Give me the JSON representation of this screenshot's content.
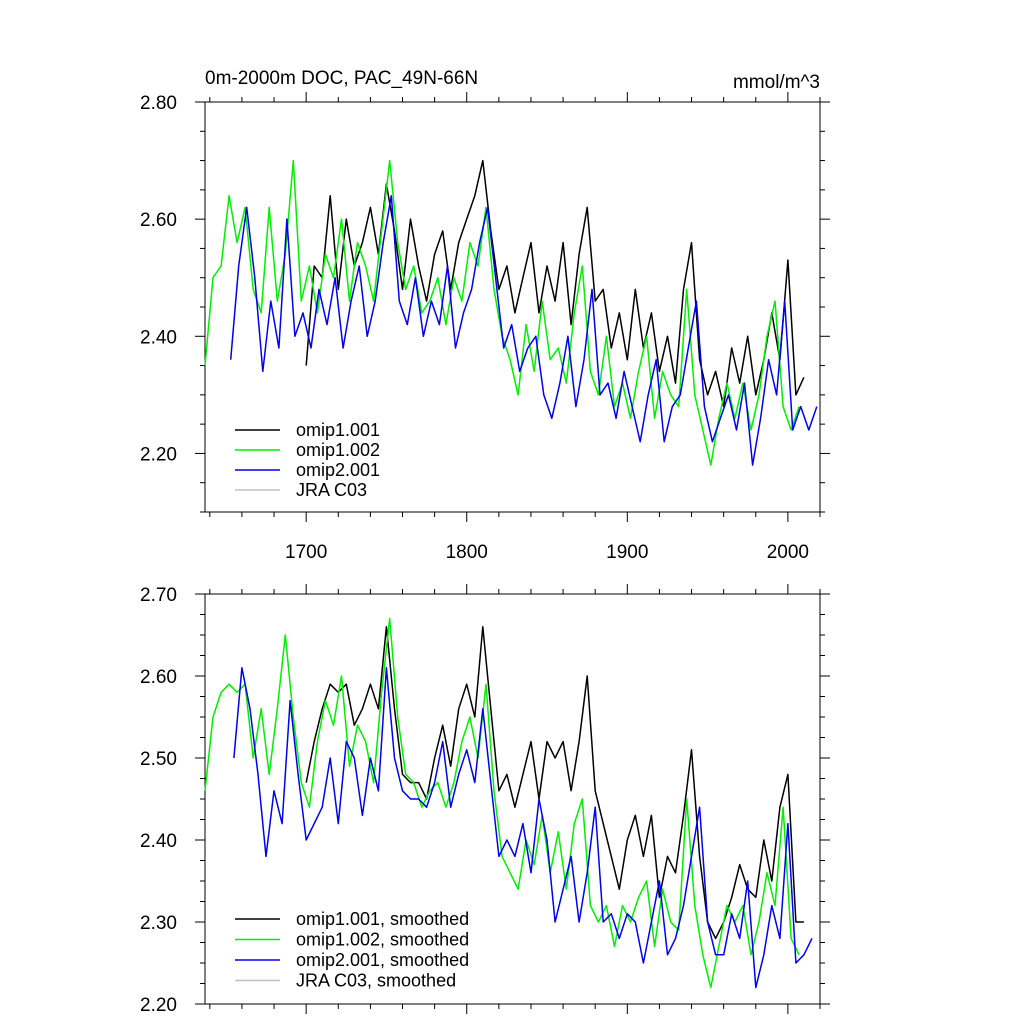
{
  "chart_data": [
    {
      "type": "line",
      "title": "0m-2000m DOC, PAC_49N-66N",
      "units": "mmol/m^3",
      "xlim": [
        1637,
        2020
      ],
      "ylim": [
        2.1,
        2.8
      ],
      "xticks": [
        1700,
        1800,
        1900,
        2000
      ],
      "xtick_labels": [
        "1700",
        "1800",
        "1900",
        "2000"
      ],
      "yticks": [
        2.2,
        2.4,
        2.6,
        2.8
      ],
      "ytick_labels": [
        "2.20",
        "2.40",
        "2.60",
        "2.80"
      ],
      "legend_position": "bottom-left",
      "legend": [
        "omip1.001",
        "omip1.002",
        "omip2.001",
        "JRA C03"
      ],
      "series": [
        {
          "name": "omip1.001",
          "color": "#000000",
          "x": [
            1700,
            1705,
            1710,
            1715,
            1720,
            1725,
            1730,
            1735,
            1740,
            1745,
            1750,
            1755,
            1760,
            1765,
            1770,
            1775,
            1780,
            1785,
            1790,
            1795,
            1800,
            1805,
            1810,
            1815,
            1820,
            1825,
            1830,
            1835,
            1840,
            1845,
            1850,
            1855,
            1860,
            1865,
            1870,
            1875,
            1880,
            1885,
            1890,
            1895,
            1900,
            1905,
            1910,
            1915,
            1920,
            1925,
            1930,
            1935,
            1940,
            1945,
            1950,
            1955,
            1960,
            1965,
            1970,
            1975,
            1980,
            1985,
            1990,
            1995,
            2000,
            2005,
            2010
          ],
          "y": [
            2.35,
            2.52,
            2.5,
            2.64,
            2.48,
            2.6,
            2.52,
            2.56,
            2.62,
            2.54,
            2.66,
            2.58,
            2.48,
            2.6,
            2.52,
            2.46,
            2.54,
            2.58,
            2.48,
            2.56,
            2.6,
            2.64,
            2.7,
            2.58,
            2.48,
            2.52,
            2.44,
            2.5,
            2.56,
            2.44,
            2.52,
            2.46,
            2.56,
            2.42,
            2.54,
            2.62,
            2.46,
            2.48,
            2.38,
            2.44,
            2.36,
            2.48,
            2.38,
            2.44,
            2.34,
            2.4,
            2.32,
            2.48,
            2.56,
            2.36,
            2.3,
            2.34,
            2.28,
            2.38,
            2.32,
            2.4,
            2.3,
            2.36,
            2.44,
            2.36,
            2.53,
            2.3,
            2.33
          ]
        },
        {
          "name": "omip1.002",
          "color": "#00ee00",
          "x": [
            1637,
            1642,
            1647,
            1652,
            1657,
            1662,
            1667,
            1672,
            1677,
            1682,
            1687,
            1692,
            1697,
            1702,
            1707,
            1712,
            1717,
            1722,
            1727,
            1732,
            1737,
            1742,
            1747,
            1752,
            1757,
            1762,
            1767,
            1772,
            1777,
            1782,
            1787,
            1792,
            1797,
            1802,
            1807,
            1812,
            1817,
            1822,
            1827,
            1832,
            1837,
            1842,
            1847,
            1852,
            1857,
            1862,
            1867,
            1872,
            1877,
            1882,
            1887,
            1892,
            1897,
            1902,
            1907,
            1912,
            1917,
            1922,
            1927,
            1932,
            1937,
            1942,
            1947,
            1952,
            1957,
            1962,
            1967,
            1972,
            1977,
            1982,
            1987,
            1992,
            1997,
            2002,
            2007
          ],
          "y": [
            2.35,
            2.5,
            2.52,
            2.64,
            2.56,
            2.62,
            2.48,
            2.44,
            2.62,
            2.46,
            2.54,
            2.7,
            2.46,
            2.52,
            2.44,
            2.54,
            2.5,
            2.6,
            2.46,
            2.56,
            2.52,
            2.46,
            2.58,
            2.7,
            2.56,
            2.48,
            2.52,
            2.44,
            2.46,
            2.5,
            2.42,
            2.5,
            2.46,
            2.56,
            2.52,
            2.62,
            2.48,
            2.4,
            2.36,
            2.3,
            2.42,
            2.34,
            2.46,
            2.36,
            2.38,
            2.32,
            2.44,
            2.52,
            2.34,
            2.3,
            2.4,
            2.28,
            2.32,
            2.26,
            2.34,
            2.4,
            2.26,
            2.34,
            2.3,
            2.28,
            2.48,
            2.3,
            2.24,
            2.18,
            2.26,
            2.32,
            2.26,
            2.32,
            2.24,
            2.3,
            2.4,
            2.46,
            2.28,
            2.24,
            2.28
          ]
        },
        {
          "name": "omip2.001",
          "color": "#0000ee",
          "x": [
            1653,
            1658,
            1663,
            1668,
            1673,
            1678,
            1683,
            1688,
            1693,
            1698,
            1703,
            1708,
            1713,
            1718,
            1723,
            1728,
            1733,
            1738,
            1743,
            1748,
            1753,
            1758,
            1763,
            1768,
            1773,
            1778,
            1783,
            1788,
            1793,
            1798,
            1803,
            1808,
            1813,
            1818,
            1823,
            1828,
            1833,
            1838,
            1843,
            1848,
            1853,
            1858,
            1863,
            1868,
            1873,
            1878,
            1883,
            1888,
            1893,
            1898,
            1903,
            1908,
            1913,
            1918,
            1923,
            1928,
            1933,
            1938,
            1943,
            1948,
            1953,
            1958,
            1963,
            1968,
            1973,
            1978,
            1983,
            1988,
            1993,
            1998,
            2003,
            2008,
            2013,
            2018
          ],
          "y": [
            2.36,
            2.52,
            2.62,
            2.5,
            2.34,
            2.46,
            2.38,
            2.6,
            2.4,
            2.44,
            2.38,
            2.48,
            2.42,
            2.5,
            2.38,
            2.46,
            2.52,
            2.4,
            2.46,
            2.56,
            2.64,
            2.46,
            2.42,
            2.5,
            2.4,
            2.46,
            2.42,
            2.52,
            2.38,
            2.44,
            2.48,
            2.56,
            2.62,
            2.5,
            2.38,
            2.42,
            2.34,
            2.38,
            2.4,
            2.3,
            2.26,
            2.32,
            2.4,
            2.28,
            2.36,
            2.48,
            2.3,
            2.32,
            2.26,
            2.34,
            2.28,
            2.22,
            2.3,
            2.36,
            2.22,
            2.28,
            2.3,
            2.38,
            2.46,
            2.28,
            2.22,
            2.26,
            2.3,
            2.24,
            2.32,
            2.18,
            2.26,
            2.36,
            2.3,
            2.46,
            2.24,
            2.28,
            2.24,
            2.28
          ]
        }
      ]
    },
    {
      "type": "line",
      "xlim": [
        1637,
        2020
      ],
      "ylim": [
        2.2,
        2.7
      ],
      "xticks": [
        1700,
        1800,
        1900,
        2000
      ],
      "yticks": [
        2.2,
        2.3,
        2.4,
        2.5,
        2.6,
        2.7
      ],
      "ytick_labels": [
        "2.20",
        "2.30",
        "2.40",
        "2.50",
        "2.60",
        "2.70"
      ],
      "legend_position": "bottom-left",
      "legend": [
        "omip1.001, smoothed",
        "omip1.002, smoothed",
        "omip2.001, smoothed",
        "JRA C03, smoothed"
      ],
      "series": [
        {
          "name": "omip1.001, smoothed",
          "color": "#000000",
          "x": [
            1700,
            1705,
            1710,
            1715,
            1720,
            1725,
            1730,
            1735,
            1740,
            1745,
            1750,
            1755,
            1760,
            1765,
            1770,
            1775,
            1780,
            1785,
            1790,
            1795,
            1800,
            1805,
            1810,
            1815,
            1820,
            1825,
            1830,
            1835,
            1840,
            1845,
            1850,
            1855,
            1860,
            1865,
            1870,
            1875,
            1880,
            1885,
            1890,
            1895,
            1900,
            1905,
            1910,
            1915,
            1920,
            1925,
            1930,
            1935,
            1940,
            1945,
            1950,
            1955,
            1960,
            1965,
            1970,
            1975,
            1980,
            1985,
            1990,
            1995,
            2000,
            2005,
            2010
          ],
          "y": [
            2.47,
            2.52,
            2.56,
            2.59,
            2.58,
            2.59,
            2.54,
            2.56,
            2.59,
            2.56,
            2.66,
            2.56,
            2.48,
            2.47,
            2.47,
            2.45,
            2.5,
            2.54,
            2.49,
            2.56,
            2.59,
            2.55,
            2.66,
            2.56,
            2.46,
            2.48,
            2.44,
            2.48,
            2.52,
            2.45,
            2.52,
            2.5,
            2.52,
            2.46,
            2.52,
            2.6,
            2.46,
            2.42,
            2.38,
            2.34,
            2.4,
            2.43,
            2.38,
            2.43,
            2.33,
            2.38,
            2.36,
            2.43,
            2.51,
            2.38,
            2.3,
            2.28,
            2.3,
            2.33,
            2.37,
            2.34,
            2.33,
            2.4,
            2.35,
            2.44,
            2.48,
            2.3,
            2.3
          ]
        },
        {
          "name": "omip1.002, smoothed",
          "color": "#00ee00",
          "x": [
            1637,
            1642,
            1647,
            1652,
            1657,
            1662,
            1667,
            1672,
            1677,
            1682,
            1687,
            1692,
            1697,
            1702,
            1707,
            1712,
            1717,
            1722,
            1727,
            1732,
            1737,
            1742,
            1747,
            1752,
            1757,
            1762,
            1767,
            1772,
            1777,
            1782,
            1787,
            1792,
            1797,
            1802,
            1807,
            1812,
            1817,
            1822,
            1827,
            1832,
            1837,
            1842,
            1847,
            1852,
            1857,
            1862,
            1867,
            1872,
            1877,
            1882,
            1887,
            1892,
            1897,
            1902,
            1907,
            1912,
            1917,
            1922,
            1927,
            1932,
            1937,
            1942,
            1947,
            1952,
            1957,
            1962,
            1967,
            1972,
            1977,
            1982,
            1987,
            1992,
            1997,
            2002,
            2007
          ],
          "y": [
            2.46,
            2.55,
            2.58,
            2.59,
            2.58,
            2.59,
            2.5,
            2.56,
            2.48,
            2.56,
            2.65,
            2.55,
            2.47,
            2.44,
            2.52,
            2.57,
            2.54,
            2.6,
            2.49,
            2.54,
            2.52,
            2.47,
            2.58,
            2.67,
            2.55,
            2.48,
            2.47,
            2.44,
            2.46,
            2.47,
            2.44,
            2.47,
            2.52,
            2.55,
            2.5,
            2.59,
            2.46,
            2.38,
            2.36,
            2.34,
            2.4,
            2.37,
            2.43,
            2.36,
            2.41,
            2.34,
            2.42,
            2.45,
            2.32,
            2.3,
            2.32,
            2.27,
            2.32,
            2.3,
            2.33,
            2.35,
            2.27,
            2.34,
            2.3,
            2.29,
            2.45,
            2.32,
            2.26,
            2.22,
            2.27,
            2.32,
            2.3,
            2.32,
            2.26,
            2.3,
            2.36,
            2.32,
            2.44,
            2.28,
            2.26
          ]
        },
        {
          "name": "omip2.001, smoothed",
          "color": "#0000ee",
          "x": [
            1655,
            1660,
            1665,
            1670,
            1675,
            1680,
            1685,
            1690,
            1695,
            1700,
            1705,
            1710,
            1715,
            1720,
            1725,
            1730,
            1735,
            1740,
            1745,
            1750,
            1755,
            1760,
            1765,
            1770,
            1775,
            1780,
            1785,
            1790,
            1795,
            1800,
            1805,
            1810,
            1815,
            1820,
            1825,
            1830,
            1835,
            1840,
            1845,
            1850,
            1855,
            1860,
            1865,
            1870,
            1875,
            1880,
            1885,
            1890,
            1895,
            1900,
            1905,
            1910,
            1915,
            1920,
            1925,
            1930,
            1935,
            1940,
            1945,
            1950,
            1955,
            1960,
            1965,
            1970,
            1975,
            1980,
            1985,
            1990,
            1995,
            2000,
            2005,
            2010,
            2015
          ],
          "y": [
            2.5,
            2.61,
            2.56,
            2.48,
            2.38,
            2.46,
            2.42,
            2.57,
            2.48,
            2.4,
            2.42,
            2.44,
            2.5,
            2.42,
            2.52,
            2.5,
            2.43,
            2.5,
            2.46,
            2.61,
            2.5,
            2.46,
            2.45,
            2.45,
            2.44,
            2.47,
            2.52,
            2.44,
            2.48,
            2.51,
            2.47,
            2.56,
            2.47,
            2.38,
            2.4,
            2.38,
            2.42,
            2.36,
            2.45,
            2.4,
            2.3,
            2.34,
            2.38,
            2.3,
            2.36,
            2.44,
            2.3,
            2.31,
            2.28,
            2.31,
            2.3,
            2.25,
            2.3,
            2.35,
            2.26,
            2.28,
            2.32,
            2.38,
            2.44,
            2.3,
            2.26,
            2.26,
            2.31,
            2.28,
            2.35,
            2.22,
            2.26,
            2.32,
            2.28,
            2.42,
            2.25,
            2.26,
            2.28
          ]
        }
      ]
    }
  ]
}
